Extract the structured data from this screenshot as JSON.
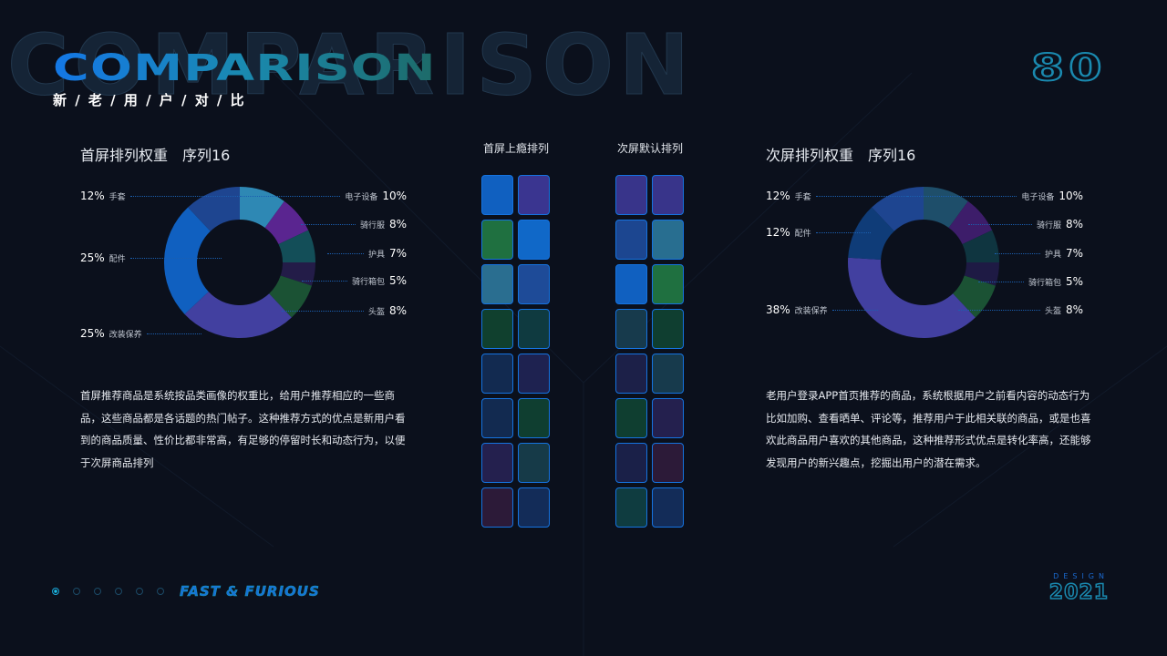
{
  "header": {
    "ghost_text": "COMPARISON",
    "title": "COMPARISON",
    "subtitle": "新 / 老 / 用 / 户 / 对 / 比",
    "page_number": "80"
  },
  "left_section": {
    "title": "首屏排列权重　序列16",
    "paragraph": "首屏推荐商品是系统按品类画像的权重比，给用户推荐相应的一些商品，这些商品都是各话题的热门帖子。这种推荐方式的优点是新用户看到的商品质量、性价比都非常高，有足够的停留时长和动态行为，以便于次屏商品排列"
  },
  "right_section": {
    "title": "次屏排列权重　序列16",
    "paragraph": "老用户登录APP首页推荐的商品，系统根据用户之前看内容的动态行为比如加购、查看晒单、评论等，推荐用户于此相关联的商品，或是也喜欢此商品用户喜欢的其他商品，这种推荐形式优点是转化率高，还能够发现用户的新兴趣点，挖掘出用户的潜在需求。"
  },
  "center": {
    "col1_title": "首屏上瘾排列",
    "col2_title": "次屏默认排列",
    "col1_tiles": [
      "#1060c0",
      "#3a3590",
      "#1f7040",
      "#1068c8",
      "#2a6e90",
      "#1e4b98",
      "#10402e",
      "#0f3a40",
      "#122a50",
      "#1e2250",
      "#122a50",
      "#0f3e30",
      "#24204e",
      "#163a48",
      "#2c1a38",
      "#132c58"
    ],
    "col2_tiles": [
      "#38348a",
      "#38348a",
      "#1c4690",
      "#286e90",
      "#1060c0",
      "#1f7040",
      "#173a4c",
      "#0f3e30",
      "#1c2048",
      "#173a4c",
      "#0f3e30",
      "#24204e",
      "#1a2048",
      "#2c1a38",
      "#0f3c40",
      "#132c58"
    ]
  },
  "chart_data": [
    {
      "type": "pie",
      "donut": true,
      "title": "首屏排列权重　序列16",
      "categories": [
        "电子设备",
        "骑行服",
        "护具",
        "骑行箱包",
        "头盔",
        "改装保养",
        "配件",
        "手套"
      ],
      "values": [
        10,
        8,
        7,
        5,
        8,
        25,
        25,
        12
      ],
      "labels": [
        "10%",
        "8%",
        "7%",
        "5%",
        "8%",
        "25%",
        "25%",
        "12%"
      ],
      "colors": [
        "#2e88b4",
        "#5a2590",
        "#134e58",
        "#231c48",
        "#1b5234",
        "#4240a0",
        "#1060c0",
        "#1e4590"
      ]
    },
    {
      "type": "pie",
      "donut": true,
      "title": "次屏排列权重　序列16",
      "categories": [
        "电子设备",
        "骑行服",
        "护具",
        "骑行箱包",
        "头盔",
        "改装保养",
        "配件",
        "手套"
      ],
      "values": [
        10,
        8,
        7,
        5,
        8,
        38,
        12,
        12
      ],
      "labels": [
        "10%",
        "8%",
        "7%",
        "5%",
        "8%",
        "38%",
        "12%",
        "12%"
      ],
      "colors": [
        "#1e4e6a",
        "#3d1d6a",
        "#0f3540",
        "#1e1a44",
        "#1b5234",
        "#4240a0",
        "#0f3c78",
        "#1e4590"
      ]
    }
  ],
  "footer": {
    "tagline": "FAST & FURIOUS",
    "design_label": "DESIGN",
    "year": "2021",
    "page_dots": 6,
    "active_dot": 0
  },
  "colors": {
    "background": "#0b101c",
    "accent_blue": "#1477e6",
    "accent_teal": "#1a8ab0",
    "tile_border": "#1573e0"
  }
}
